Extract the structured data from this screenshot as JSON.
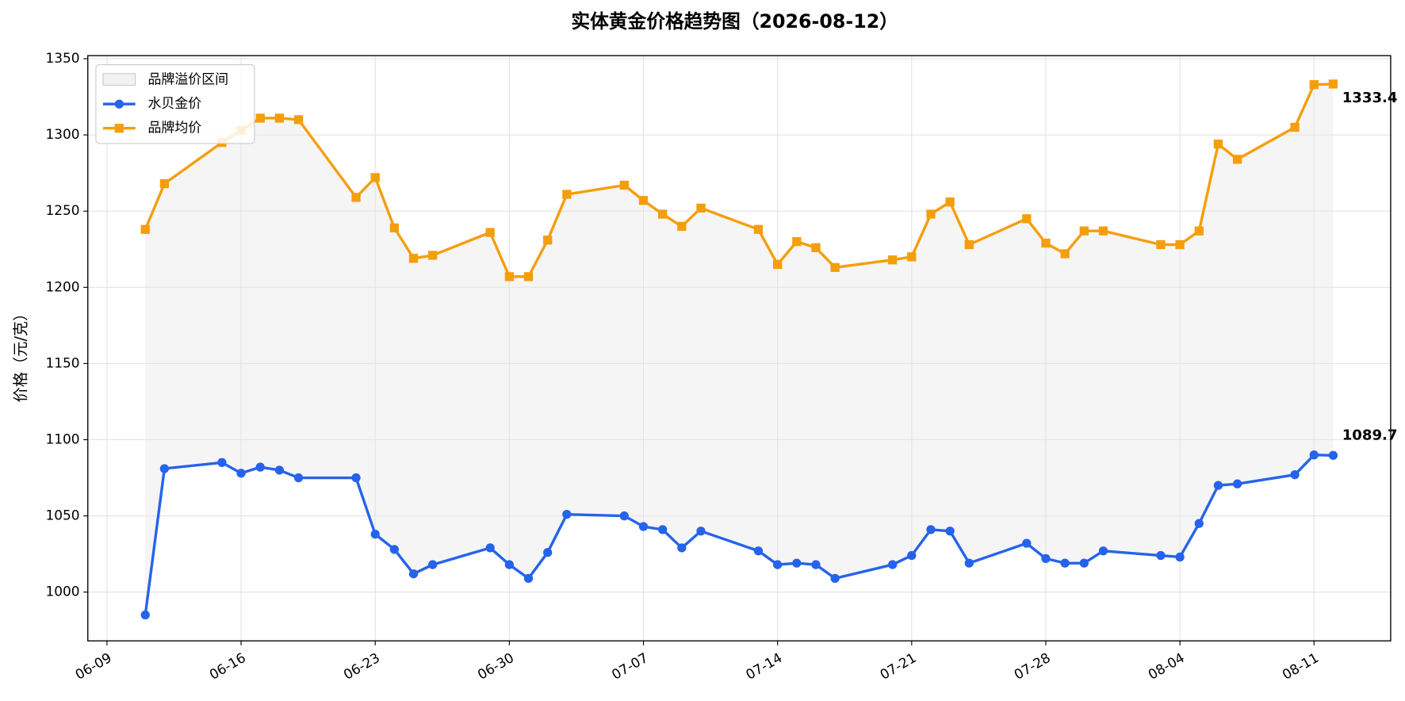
{
  "chart_data": {
    "type": "line",
    "title": "实体黄金价格趋势图（2026-08-12）",
    "y_label": "价格（元/克）",
    "x": [
      "06-11",
      "06-12",
      "06-15",
      "06-16",
      "06-17",
      "06-18",
      "06-19",
      "06-22",
      "06-23",
      "06-24",
      "06-25",
      "06-26",
      "06-29",
      "06-30",
      "07-01",
      "07-02",
      "07-03",
      "07-06",
      "07-07",
      "07-08",
      "07-09",
      "07-10",
      "07-13",
      "07-14",
      "07-15",
      "07-16",
      "07-17",
      "07-20",
      "07-21",
      "07-22",
      "07-23",
      "07-24",
      "07-27",
      "07-28",
      "07-29",
      "07-30",
      "07-31",
      "08-03",
      "08-04",
      "08-05",
      "08-06",
      "08-07",
      "08-10",
      "08-11",
      "08-12"
    ],
    "series": [
      {
        "name": "水贝金价",
        "color": "#2563eb",
        "marker": "circle",
        "values": [
          985,
          1081,
          1085,
          1078,
          1082,
          1080,
          1075,
          1075,
          1038,
          1028,
          1012,
          1018,
          1029,
          1018,
          1009,
          1026,
          1051,
          1050,
          1043,
          1041,
          1029,
          1040,
          1027,
          1018,
          1019,
          1018,
          1009,
          1018,
          1024,
          1041,
          1040,
          1019,
          1032,
          1022,
          1019,
          1019,
          1027,
          1024,
          1023,
          1045,
          1070,
          1071,
          1077,
          1090,
          1089.7
        ]
      },
      {
        "name": "品牌均价",
        "color": "#f59e0b",
        "marker": "square",
        "values": [
          1238,
          1268,
          1295,
          1303,
          1311,
          1311,
          1310,
          1259,
          1272,
          1239,
          1219,
          1221,
          1236,
          1207,
          1207,
          1231,
          1261,
          1267,
          1257,
          1248,
          1240,
          1252,
          1238,
          1215,
          1230,
          1226,
          1213,
          1218,
          1220,
          1248,
          1256,
          1228,
          1245,
          1229,
          1222,
          1237,
          1237,
          1228,
          1228,
          1237,
          1294,
          1284,
          1305,
          1333,
          1333.4
        ]
      }
    ],
    "band": {
      "name": "品牌溢价区间",
      "color": "#e5e5e5"
    },
    "xlim": [
      "06-08",
      "08-15"
    ],
    "xticks": [
      "06-09",
      "06-16",
      "06-23",
      "06-30",
      "07-07",
      "07-14",
      "07-21",
      "07-28",
      "08-04",
      "08-11"
    ],
    "ylim": [
      968,
      1352
    ],
    "yticks": [
      1000,
      1050,
      1100,
      1150,
      1200,
      1250,
      1300,
      1350
    ],
    "grid": true,
    "legend": "upper left"
  }
}
